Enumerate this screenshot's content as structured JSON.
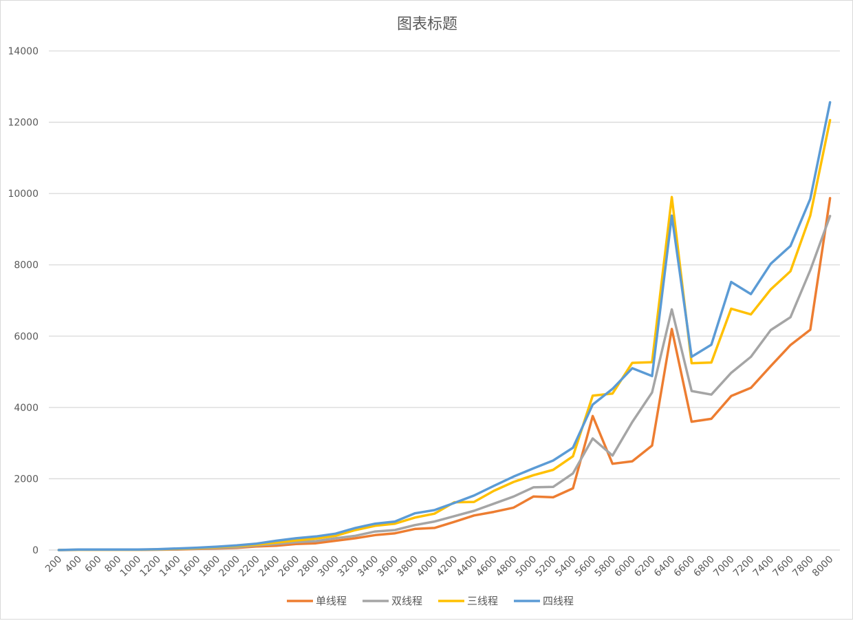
{
  "chart_data": {
    "type": "line",
    "title": "图表标题",
    "xlabel": "",
    "ylabel": "",
    "ylim": [
      0,
      14000
    ],
    "yticks": [
      0,
      2000,
      4000,
      6000,
      8000,
      10000,
      12000,
      14000
    ],
    "grid": true,
    "legend_position": "bottom",
    "categories": [
      "200",
      "400",
      "600",
      "800",
      "1000",
      "1200",
      "1400",
      "1600",
      "1800",
      "2000",
      "2200",
      "2400",
      "2600",
      "2800",
      "3000",
      "3200",
      "3400",
      "3600",
      "3800",
      "4000",
      "4200",
      "4400",
      "4600",
      "4800",
      "5000",
      "5200",
      "5400",
      "5600",
      "5800",
      "6000",
      "6200",
      "6400",
      "6600",
      "6800",
      "7000",
      "7200",
      "7400",
      "7600",
      "7800",
      "8000"
    ],
    "series": [
      {
        "name": "单线程",
        "color": "#ED7D31",
        "values": [
          0,
          5,
          5,
          5,
          5,
          10,
          15,
          30,
          45,
          60,
          100,
          120,
          170,
          190,
          260,
          330,
          420,
          470,
          590,
          620,
          790,
          970,
          1070,
          1190,
          1500,
          1480,
          1730,
          3760,
          2420,
          2490,
          2930,
          6200,
          3600,
          3680,
          4320,
          4550,
          5160,
          5750,
          6180,
          9870
        ]
      },
      {
        "name": "双线程",
        "color": "#A5A5A5",
        "values": [
          0,
          5,
          8,
          8,
          10,
          15,
          25,
          40,
          60,
          80,
          130,
          170,
          220,
          250,
          330,
          400,
          520,
          560,
          700,
          800,
          950,
          1100,
          1300,
          1500,
          1760,
          1770,
          2150,
          3130,
          2650,
          3590,
          4420,
          6750,
          4460,
          4360,
          4970,
          5420,
          6170,
          6530,
          7850,
          9370
        ]
      },
      {
        "name": "三线程",
        "color": "#FFC000",
        "values": [
          0,
          10,
          10,
          10,
          10,
          20,
          35,
          55,
          80,
          110,
          150,
          210,
          270,
          320,
          400,
          560,
          680,
          740,
          910,
          1020,
          1340,
          1350,
          1660,
          1910,
          2100,
          2250,
          2630,
          4330,
          4390,
          5250,
          5270,
          9900,
          5240,
          5260,
          6770,
          6610,
          7310,
          7820,
          9380,
          12060
        ]
      },
      {
        "name": "四线程",
        "color": "#5B9BD5",
        "values": [
          0,
          15,
          15,
          15,
          15,
          25,
          45,
          65,
          95,
          130,
          180,
          260,
          330,
          380,
          460,
          620,
          740,
          800,
          1030,
          1120,
          1320,
          1530,
          1800,
          2060,
          2290,
          2510,
          2870,
          4080,
          4520,
          5100,
          4880,
          9380,
          5420,
          5760,
          7520,
          7180,
          8030,
          8530,
          9850,
          12560
        ]
      }
    ]
  }
}
